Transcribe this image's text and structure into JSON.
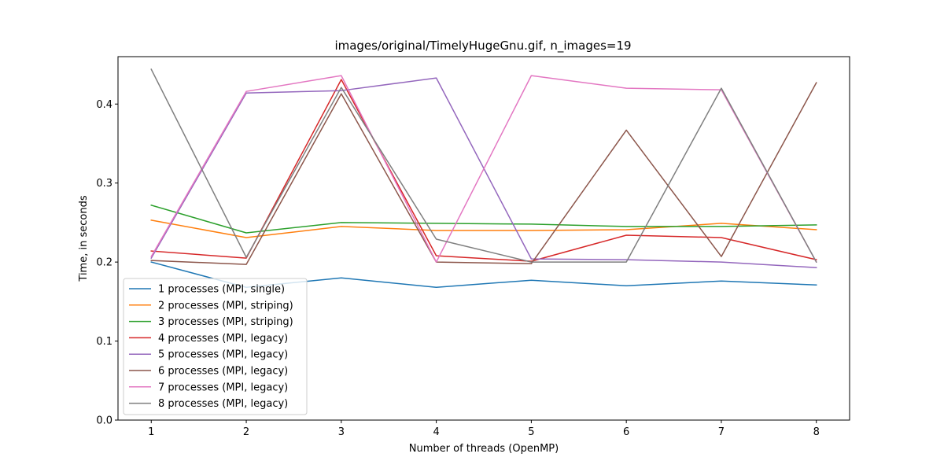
{
  "chart_data": {
    "type": "line",
    "title": "images/original/TimelyHugeGnu.gif, n_images=19",
    "xlabel": "Number of threads (OpenMP)",
    "ylabel": "Time, in seconds",
    "x": [
      1,
      2,
      3,
      4,
      5,
      6,
      7,
      8
    ],
    "xlim": [
      0.65,
      8.35
    ],
    "ylim": [
      0,
      0.46
    ],
    "xticks": [
      1,
      2,
      3,
      4,
      5,
      6,
      7,
      8
    ],
    "yticks": [
      0.0,
      0.1,
      0.2,
      0.3,
      0.4
    ],
    "ytick_labels": [
      "0.0",
      "0.1",
      "0.2",
      "0.3",
      "0.4"
    ],
    "legend_location": "lower-left",
    "grid": false,
    "series": [
      {
        "name": "1 processes (MPI, single)",
        "color": "#1f77b4",
        "values": [
          0.2,
          0.168,
          0.18,
          0.168,
          0.177,
          0.17,
          0.176,
          0.171
        ]
      },
      {
        "name": "2 processes (MPI, striping)",
        "color": "#ff7f0e",
        "values": [
          0.253,
          0.231,
          0.245,
          0.24,
          0.24,
          0.241,
          0.249,
          0.241
        ]
      },
      {
        "name": "3 processes (MPI, striping)",
        "color": "#2ca02c",
        "values": [
          0.272,
          0.237,
          0.25,
          0.249,
          0.248,
          0.245,
          0.245,
          0.247
        ]
      },
      {
        "name": "4 processes (MPI, legacy)",
        "color": "#d62728",
        "values": [
          0.214,
          0.205,
          0.431,
          0.208,
          0.201,
          0.234,
          0.231,
          0.203
        ]
      },
      {
        "name": "5 processes (MPI, legacy)",
        "color": "#9467bd",
        "values": [
          0.205,
          0.414,
          0.417,
          0.433,
          0.204,
          0.203,
          0.2,
          0.193
        ]
      },
      {
        "name": "6 processes (MPI, legacy)",
        "color": "#8c564b",
        "values": [
          0.202,
          0.197,
          0.413,
          0.2,
          0.198,
          0.367,
          0.207,
          0.427
        ]
      },
      {
        "name": "7 processes (MPI, legacy)",
        "color": "#e377c2",
        "values": [
          0.207,
          0.416,
          0.436,
          0.2,
          0.436,
          0.42,
          0.418,
          0.2
        ]
      },
      {
        "name": "8 processes (MPI, legacy)",
        "color": "#7f7f7f",
        "values": [
          0.444,
          0.206,
          0.421,
          0.229,
          0.2,
          0.2,
          0.42,
          0.2
        ]
      }
    ]
  }
}
